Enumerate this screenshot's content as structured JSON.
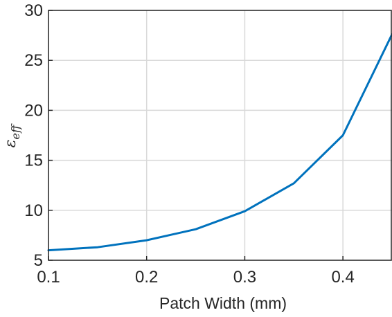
{
  "chart_data": {
    "type": "line",
    "title": "",
    "xlabel": "Patch Width (mm)",
    "ylabel": "ε",
    "ylabel_sub": "eff",
    "xlim": [
      0.1,
      0.45
    ],
    "ylim": [
      5,
      30
    ],
    "xticks": [
      0.1,
      0.2,
      0.3,
      0.4
    ],
    "xtick_labels": [
      "0.1",
      "0.2",
      "0.3",
      "0.4"
    ],
    "yticks": [
      5,
      10,
      15,
      20,
      25,
      30
    ],
    "ytick_labels": [
      "5",
      "10",
      "15",
      "20",
      "25",
      "30"
    ],
    "grid": true,
    "series": [
      {
        "color": "#0072bd",
        "x": [
          0.1,
          0.15,
          0.2,
          0.25,
          0.3,
          0.35,
          0.4,
          0.45
        ],
        "y": [
          6.0,
          6.3,
          7.0,
          8.1,
          9.9,
          12.7,
          17.5,
          27.6
        ]
      }
    ]
  }
}
